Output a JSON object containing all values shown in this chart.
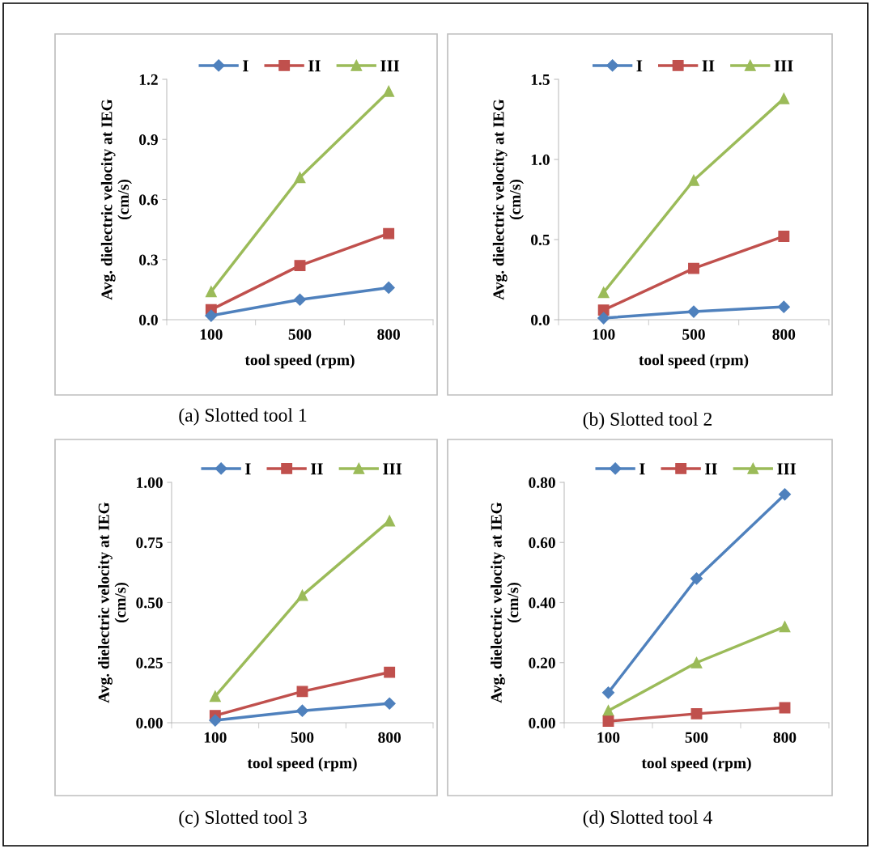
{
  "chart_data": [
    {
      "type": "line",
      "categories": [
        "100",
        "500",
        "800"
      ],
      "xlabel": "tool speed (rpm)",
      "ylabel": "Avg. dielectric velocity at IEG\n(cm/s)",
      "ylim": [
        0,
        1.2
      ],
      "yticks": [
        {
          "value": 0,
          "label": "0.0"
        },
        {
          "value": 0.3,
          "label": "0.3"
        },
        {
          "value": 0.6,
          "label": "0.6"
        },
        {
          "value": 0.9,
          "label": "0.9"
        },
        {
          "value": 1.2,
          "label": "1.2"
        }
      ],
      "legend": "top",
      "grid": false,
      "annotations": [
        "(a) Slotted tool 1"
      ],
      "series": [
        {
          "name": "I",
          "color": "#4f81bd",
          "marker": "diamond",
          "values": [
            0.02,
            0.1,
            0.16
          ]
        },
        {
          "name": "II",
          "color": "#c0504d",
          "marker": "square",
          "values": [
            0.05,
            0.27,
            0.43
          ]
        },
        {
          "name": "III",
          "color": "#9bbb59",
          "marker": "triangle",
          "values": [
            0.14,
            0.71,
            1.14
          ]
        }
      ]
    },
    {
      "type": "line",
      "categories": [
        "100",
        "500",
        "800"
      ],
      "xlabel": "tool speed (rpm)",
      "ylabel": "Avg. dielectric velocity at IEG\n(cm/s)",
      "ylim": [
        0,
        1.5
      ],
      "yticks": [
        {
          "value": 0,
          "label": "0.0"
        },
        {
          "value": 0.5,
          "label": "0.5"
        },
        {
          "value": 1.0,
          "label": "1.0"
        },
        {
          "value": 1.5,
          "label": "1.5"
        }
      ],
      "legend": "top",
      "grid": false,
      "annotations": [
        "(b) Slotted tool 2"
      ],
      "series": [
        {
          "name": "I",
          "color": "#4f81bd",
          "marker": "diamond",
          "values": [
            0.01,
            0.05,
            0.08
          ]
        },
        {
          "name": "II",
          "color": "#c0504d",
          "marker": "square",
          "values": [
            0.06,
            0.32,
            0.52
          ]
        },
        {
          "name": "III",
          "color": "#9bbb59",
          "marker": "triangle",
          "values": [
            0.17,
            0.87,
            1.38
          ]
        }
      ]
    },
    {
      "type": "line",
      "categories": [
        "100",
        "500",
        "800"
      ],
      "xlabel": "tool speed (rpm)",
      "ylabel": "Avg. dielectric velocity at IEG\n(cm/s)",
      "ylim": [
        0,
        1.0
      ],
      "yticks": [
        {
          "value": 0,
          "label": "0.00"
        },
        {
          "value": 0.25,
          "label": "0.25"
        },
        {
          "value": 0.5,
          "label": "0.50"
        },
        {
          "value": 0.75,
          "label": "0.75"
        },
        {
          "value": 1.0,
          "label": "1.00"
        }
      ],
      "legend": "top",
      "grid": false,
      "annotations": [
        "(c) Slotted tool 3"
      ],
      "series": [
        {
          "name": "I",
          "color": "#4f81bd",
          "marker": "diamond",
          "values": [
            0.01,
            0.05,
            0.08
          ]
        },
        {
          "name": "II",
          "color": "#c0504d",
          "marker": "square",
          "values": [
            0.03,
            0.13,
            0.21
          ]
        },
        {
          "name": "III",
          "color": "#9bbb59",
          "marker": "triangle",
          "values": [
            0.11,
            0.53,
            0.84
          ]
        }
      ]
    },
    {
      "type": "line",
      "categories": [
        "100",
        "500",
        "800"
      ],
      "xlabel": "tool speed (rpm)",
      "ylabel": "Avg. dielectric velocity at IEG\n(cm/s)",
      "ylim": [
        0,
        0.8
      ],
      "yticks": [
        {
          "value": 0,
          "label": "0.00"
        },
        {
          "value": 0.2,
          "label": "0.20"
        },
        {
          "value": 0.4,
          "label": "0.40"
        },
        {
          "value": 0.6,
          "label": "0.60"
        },
        {
          "value": 0.8,
          "label": "0.80"
        }
      ],
      "legend": "top",
      "grid": false,
      "annotations": [
        "(d) Slotted tool 4"
      ],
      "series": [
        {
          "name": "I",
          "color": "#4f81bd",
          "marker": "diamond",
          "values": [
            0.1,
            0.48,
            0.76
          ]
        },
        {
          "name": "II",
          "color": "#c0504d",
          "marker": "square",
          "values": [
            0.005,
            0.03,
            0.05
          ]
        },
        {
          "name": "III",
          "color": "#9bbb59",
          "marker": "triangle",
          "values": [
            0.04,
            0.2,
            0.32
          ]
        }
      ]
    }
  ]
}
